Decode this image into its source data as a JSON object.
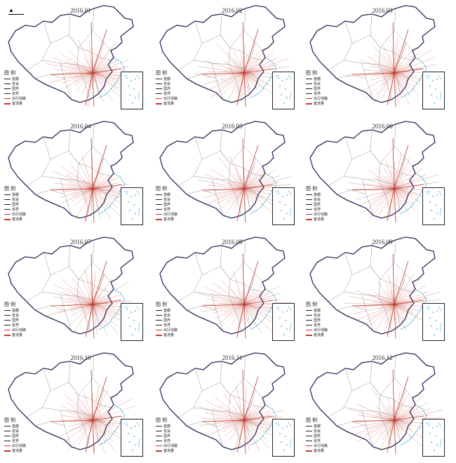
{
  "panels": [
    {
      "date": "2016.01"
    },
    {
      "date": "2016.02"
    },
    {
      "date": "2016.03"
    },
    {
      "date": "2016.04"
    },
    {
      "date": "2016.05"
    },
    {
      "date": "2016.06"
    },
    {
      "date": "2016.07"
    },
    {
      "date": "2016.08"
    },
    {
      "date": "2016.09"
    },
    {
      "date": "2016.10"
    },
    {
      "date": "2016.11"
    },
    {
      "date": "2016.12"
    }
  ],
  "legend": {
    "title": "图 例",
    "items": [
      "首都",
      "省会",
      "国界",
      "省界",
      "出行线路",
      "客流量"
    ]
  },
  "north_arrow": "N",
  "colors": {
    "flow": "#c0392b",
    "coast": "#39a9db",
    "border": "#2b2b5a",
    "province": "#777777"
  }
}
